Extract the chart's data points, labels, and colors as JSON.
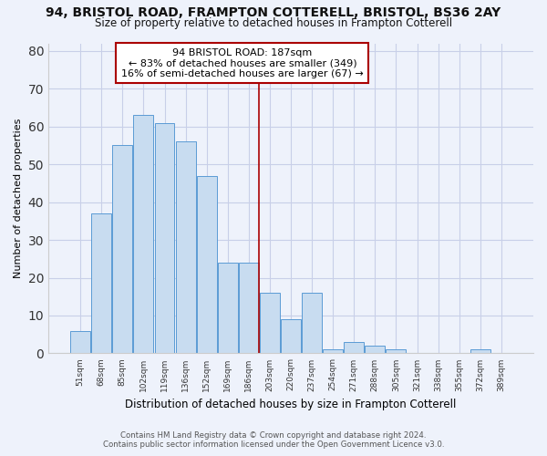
{
  "title": "94, BRISTOL ROAD, FRAMPTON COTTERELL, BRISTOL, BS36 2AY",
  "subtitle": "Size of property relative to detached houses in Frampton Cotterell",
  "xlabel": "Distribution of detached houses by size in Frampton Cotterell",
  "ylabel": "Number of detached properties",
  "bar_labels": [
    "51sqm",
    "68sqm",
    "85sqm",
    "102sqm",
    "119sqm",
    "136sqm",
    "152sqm",
    "169sqm",
    "186sqm",
    "203sqm",
    "220sqm",
    "237sqm",
    "254sqm",
    "271sqm",
    "288sqm",
    "305sqm",
    "321sqm",
    "338sqm",
    "355sqm",
    "372sqm",
    "389sqm"
  ],
  "bar_values": [
    6,
    37,
    55,
    63,
    61,
    56,
    47,
    24,
    24,
    16,
    9,
    16,
    1,
    3,
    2,
    1,
    0,
    0,
    0,
    1,
    0
  ],
  "bar_color": "#c8dcf0",
  "bar_edge_color": "#5b9bd5",
  "annotation_title": "94 BRISTOL ROAD: 187sqm",
  "annotation_line1": "← 83% of detached houses are smaller (349)",
  "annotation_line2": "16% of semi-detached houses are larger (67) →",
  "annotation_box_color": "#ffffff",
  "annotation_box_edge": "#aa0000",
  "vline_color": "#aa0000",
  "ylim": [
    0,
    82
  ],
  "yticks": [
    0,
    10,
    20,
    30,
    40,
    50,
    60,
    70,
    80
  ],
  "footer1": "Contains HM Land Registry data © Crown copyright and database right 2024.",
  "footer2": "Contains public sector information licensed under the Open Government Licence v3.0.",
  "background_color": "#eef2fb"
}
